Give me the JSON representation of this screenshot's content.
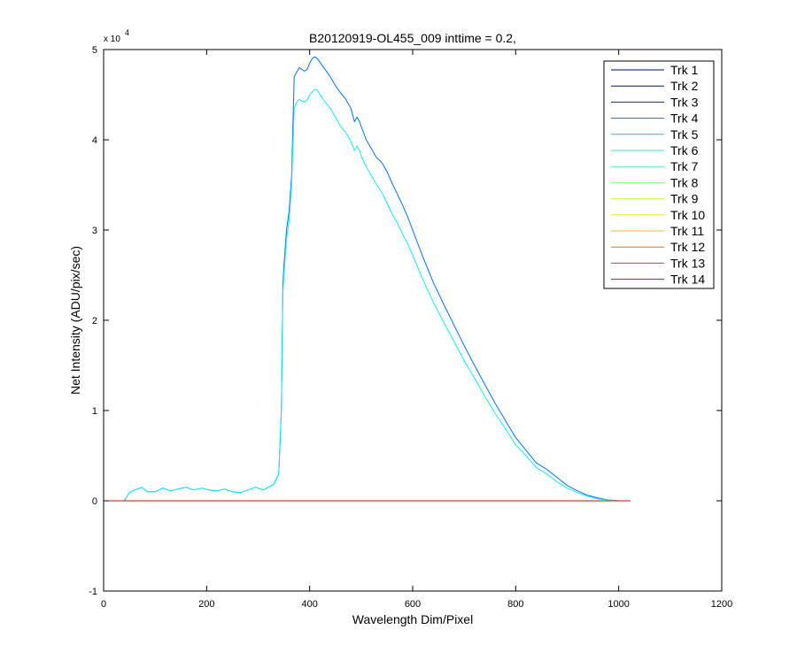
{
  "chart_data": {
    "type": "line",
    "title": "B20120919-OL455_009 inttime = 0.2,",
    "xlabel": "Wavelength Dim/Pixel",
    "ylabel": "Net Intensity (ADU/pix/sec)",
    "xlim": [
      0,
      1200
    ],
    "ylim": [
      -1,
      5
    ],
    "y_scale_label": "x 10",
    "y_scale_exponent": "4",
    "x_ticks": [
      0,
      200,
      400,
      600,
      800,
      1000,
      1200
    ],
    "x_tick_labels": [
      "0",
      "200",
      "400",
      "600",
      "800",
      "1000",
      "1200"
    ],
    "y_ticks": [
      -1,
      0,
      1,
      2,
      3,
      4,
      5
    ],
    "y_tick_labels": [
      "-1",
      "0",
      "1",
      "2",
      "3",
      "4",
      "5"
    ],
    "grid": false,
    "legend_position": "top-right",
    "series": [
      {
        "name": "Trk 1",
        "color": "#00008F",
        "x": [
          0,
          1023
        ],
        "y": [
          0,
          0
        ]
      },
      {
        "name": "Trk 2",
        "color": "#0000CF",
        "x": [
          0,
          1023
        ],
        "y": [
          0,
          0
        ]
      },
      {
        "name": "Trk 3",
        "color": "#0020FF",
        "x": [
          0,
          1023
        ],
        "y": [
          0,
          0
        ]
      },
      {
        "name": "Trk 4",
        "color": "#0070FF",
        "x": [
          0,
          40,
          50,
          60,
          75,
          85,
          100,
          115,
          130,
          145,
          160,
          175,
          190,
          205,
          220,
          235,
          250,
          265,
          280,
          295,
          310,
          320,
          330,
          340,
          345,
          348,
          350,
          355,
          360,
          365,
          370,
          375,
          380,
          385,
          390,
          395,
          400,
          405,
          410,
          415,
          420,
          430,
          440,
          450,
          460,
          470,
          480,
          487,
          492,
          497,
          500,
          510,
          520,
          530,
          540,
          550,
          560,
          570,
          580,
          590,
          600,
          620,
          640,
          660,
          680,
          700,
          720,
          740,
          760,
          780,
          800,
          820,
          840,
          860,
          880,
          900,
          920,
          940,
          960,
          980,
          1000,
          1023
        ],
        "y": [
          0,
          0,
          0.09,
          0.12,
          0.15,
          0.1,
          0.1,
          0.14,
          0.11,
          0.13,
          0.15,
          0.12,
          0.14,
          0.12,
          0.11,
          0.13,
          0.1,
          0.09,
          0.12,
          0.15,
          0.12,
          0.15,
          0.18,
          0.3,
          1.0,
          2.4,
          2.6,
          3.0,
          3.2,
          3.6,
          4.7,
          4.75,
          4.8,
          4.78,
          4.76,
          4.78,
          4.85,
          4.9,
          4.92,
          4.9,
          4.86,
          4.78,
          4.7,
          4.6,
          4.52,
          4.45,
          4.35,
          4.2,
          4.25,
          4.2,
          4.15,
          4.0,
          3.9,
          3.8,
          3.75,
          3.65,
          3.52,
          3.4,
          3.28,
          3.15,
          3.0,
          2.7,
          2.42,
          2.18,
          1.95,
          1.72,
          1.5,
          1.29,
          1.08,
          0.89,
          0.7,
          0.56,
          0.42,
          0.35,
          0.26,
          0.17,
          0.11,
          0.06,
          0.03,
          0.01,
          0.0,
          0.0
        ]
      },
      {
        "name": "Trk 5",
        "color": "#00BFFF",
        "x": [
          0,
          1023
        ],
        "y": [
          0,
          0
        ]
      },
      {
        "name": "Trk 6",
        "color": "#10EFEF",
        "x": [
          0,
          40,
          50,
          60,
          75,
          85,
          100,
          115,
          130,
          145,
          160,
          175,
          190,
          205,
          220,
          235,
          250,
          265,
          280,
          295,
          310,
          320,
          330,
          340,
          345,
          348,
          350,
          355,
          360,
          365,
          370,
          375,
          380,
          385,
          390,
          395,
          400,
          405,
          410,
          415,
          420,
          430,
          440,
          450,
          460,
          470,
          480,
          487,
          492,
          497,
          500,
          510,
          520,
          530,
          540,
          550,
          560,
          570,
          580,
          590,
          600,
          620,
          640,
          660,
          680,
          700,
          720,
          740,
          760,
          780,
          800,
          820,
          840,
          860,
          880,
          900,
          920,
          940,
          960,
          980,
          1000,
          1023
        ],
        "y": [
          0,
          0,
          0.09,
          0.12,
          0.15,
          0.1,
          0.1,
          0.14,
          0.11,
          0.13,
          0.15,
          0.12,
          0.14,
          0.12,
          0.11,
          0.13,
          0.1,
          0.09,
          0.12,
          0.15,
          0.12,
          0.15,
          0.18,
          0.3,
          1.0,
          2.3,
          2.5,
          2.9,
          3.1,
          3.5,
          4.35,
          4.42,
          4.45,
          4.43,
          4.42,
          4.44,
          4.5,
          4.53,
          4.56,
          4.55,
          4.5,
          4.42,
          4.35,
          4.25,
          4.15,
          4.08,
          3.98,
          3.88,
          3.93,
          3.88,
          3.82,
          3.7,
          3.6,
          3.5,
          3.42,
          3.3,
          3.18,
          3.08,
          2.96,
          2.85,
          2.72,
          2.45,
          2.2,
          1.98,
          1.77,
          1.55,
          1.36,
          1.16,
          0.97,
          0.8,
          0.62,
          0.5,
          0.37,
          0.3,
          0.21,
          0.14,
          0.09,
          0.05,
          0.02,
          0.01,
          0.0,
          0.0
        ]
      },
      {
        "name": "Trk 7",
        "color": "#40FFBF",
        "x": [
          0,
          1023
        ],
        "y": [
          0,
          0
        ]
      },
      {
        "name": "Trk 8",
        "color": "#80FF80",
        "x": [
          0,
          1023
        ],
        "y": [
          0,
          0
        ]
      },
      {
        "name": "Trk 9",
        "color": "#BFFF40",
        "x": [
          0,
          1023
        ],
        "y": [
          0,
          0
        ]
      },
      {
        "name": "Trk 10",
        "color": "#EFEF10",
        "x": [
          0,
          1023
        ],
        "y": [
          0,
          0
        ]
      },
      {
        "name": "Trk 11",
        "color": "#FFBF00",
        "x": [
          0,
          1023
        ],
        "y": [
          0,
          0
        ]
      },
      {
        "name": "Trk 12",
        "color": "#FF7000",
        "x": [
          0,
          1023
        ],
        "y": [
          0,
          0
        ]
      },
      {
        "name": "Trk 13",
        "color": "#FF3000",
        "x": [
          0,
          1023
        ],
        "y": [
          0,
          0
        ]
      },
      {
        "name": "Trk 14",
        "color": "#EF0000",
        "x": [
          0,
          1023
        ],
        "y": [
          0,
          0
        ]
      }
    ]
  }
}
